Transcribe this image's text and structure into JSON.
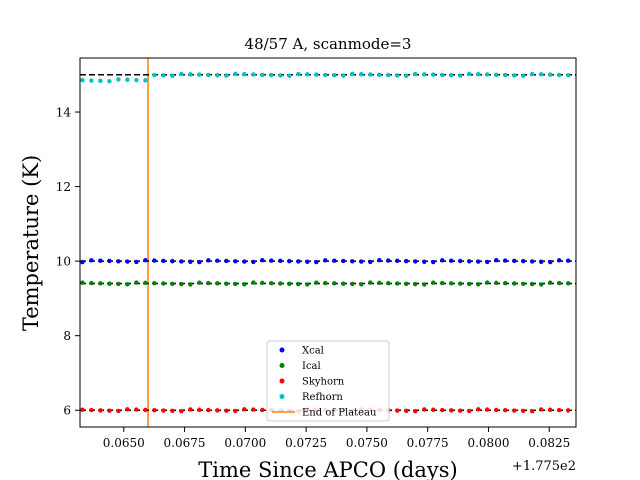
{
  "chart_data": {
    "type": "scatter",
    "title": "48/57 A, scanmode=3",
    "xlabel": "Time Since APCO (days)",
    "ylabel": "Temperature (K)",
    "x_offset_label": "+1.775e2",
    "xlim": [
      0.0632,
      0.0836
    ],
    "ylim": [
      5.55,
      15.45
    ],
    "x_ticks": [
      0.065,
      0.0675,
      0.07,
      0.0725,
      0.075,
      0.0775,
      0.08,
      0.0825
    ],
    "x_tick_labels": [
      "0.0650",
      "0.0675",
      "0.0700",
      "0.0725",
      "0.0750",
      "0.0775",
      "0.0800",
      "0.0825"
    ],
    "y_ticks": [
      6,
      8,
      10,
      12,
      14
    ],
    "y_tick_labels": [
      "6",
      "8",
      "10",
      "12",
      "14"
    ],
    "grid": false,
    "legend_position": "lower center",
    "x_start": 0.0633,
    "x_step": 0.00037,
    "n_points": 55,
    "series": [
      {
        "name": "Xcal",
        "color": "#0000ff",
        "marker": "dot",
        "y_level": 10.0,
        "plateau_y": 10.0
      },
      {
        "name": "Ical",
        "color": "#008000",
        "marker": "dot",
        "y_level": 9.4,
        "plateau_y": 9.4
      },
      {
        "name": "Skyhorn",
        "color": "#ff0000",
        "marker": "dot",
        "y_level": 6.0,
        "plateau_y": 6.0
      },
      {
        "name": "Refhorn",
        "color": "#00bfbf",
        "marker": "dot",
        "y_level": 15.0,
        "plateau_y": 14.85
      }
    ],
    "reference_lines": [
      {
        "name": "End of Plateau",
        "orientation": "vertical",
        "x": 0.066,
        "color": "#ff7f0e"
      },
      {
        "orientation": "horizontal",
        "y": 15.0,
        "color": "#000000",
        "style": "dashed"
      },
      {
        "orientation": "horizontal",
        "y": 10.0,
        "color": "#000000",
        "style": "dashed"
      },
      {
        "orientation": "horizontal",
        "y": 9.4,
        "color": "#000000",
        "style": "dashed"
      },
      {
        "orientation": "horizontal",
        "y": 6.0,
        "color": "#000000",
        "style": "dashed"
      }
    ]
  }
}
